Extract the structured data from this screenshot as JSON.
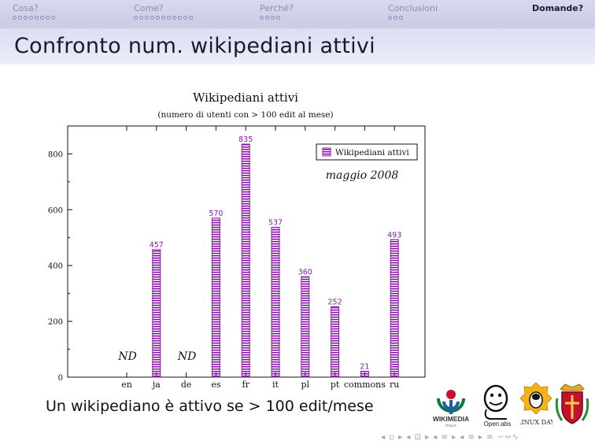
{
  "nav": [
    {
      "label": "Cosa?",
      "dots": 8,
      "active": false
    },
    {
      "label": "Come?",
      "dots": 11,
      "active": false
    },
    {
      "label": "Perché?",
      "dots": 4,
      "active": false
    },
    {
      "label": "Conclusioni",
      "dots": 3,
      "active": false
    },
    {
      "label": "Domande?",
      "dots": 0,
      "active": true
    }
  ],
  "slide_title": "Confronto num. wikipediani attivi",
  "caption": "Un wikipediano è attivo se > 100 edit/mese",
  "logos": {
    "wikimedia_text": "WIKIMEDIA",
    "wikimedia_sub": "ITALIA",
    "openlabs_text": "Open.abs",
    "linuxday_text": "LINUX DAY"
  },
  "nav_symbols": "◂ ▫ ▸ ◂ ⊡ ▸ ◂ ≡ ▸ ◂ ≡ ▸   ≡   ∽∾∿",
  "chart_data": {
    "type": "bar",
    "title": "Wikipediani attivi",
    "subtitle": "(numero di utenti con > 100 edit al mese)",
    "annotation": "maggio 2008",
    "legend": "Wikipediani attivi",
    "legend_position": "top-right",
    "categories": [
      "en",
      "ja",
      "de",
      "es",
      "fr",
      "it",
      "pl",
      "pt",
      "commons",
      "ru"
    ],
    "values": [
      null,
      457,
      null,
      570,
      835,
      537,
      360,
      252,
      21,
      493
    ],
    "value_labels": [
      "ND",
      "457",
      "ND",
      "570",
      "835",
      "537",
      "360",
      "252",
      "21",
      "493"
    ],
    "yticks": [
      0,
      200,
      400,
      600,
      800
    ],
    "ylim": [
      0,
      900
    ],
    "bar_color": "#8a1aa8",
    "grid": false
  }
}
